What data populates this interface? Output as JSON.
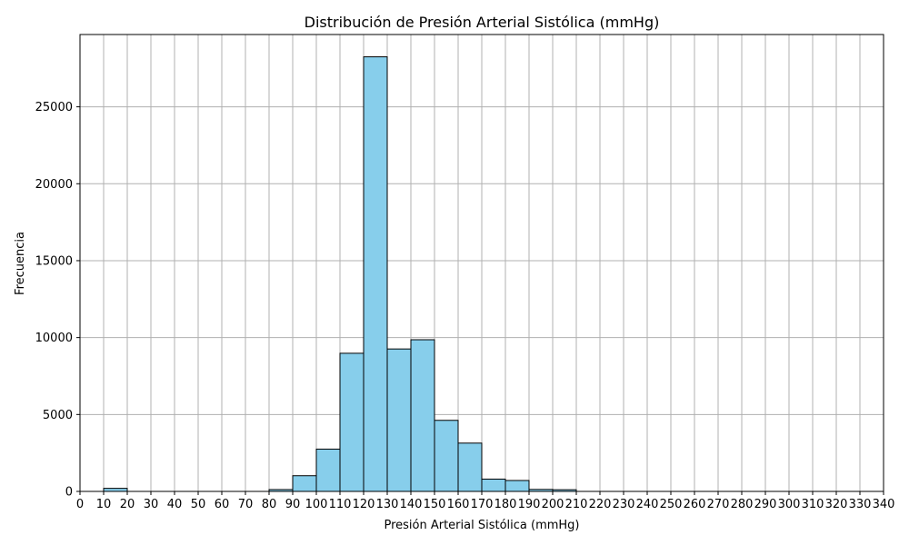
{
  "chart_data": {
    "type": "bar",
    "title": "Distribución de Presión Arterial Sistólica (mmHg)",
    "xlabel": "Presión Arterial Sistólica (mmHg)",
    "ylabel": "Frecuencia",
    "xlim": [
      0,
      340
    ],
    "ylim": [
      0,
      29700
    ],
    "xticks": [
      "0",
      "10",
      "20",
      "30",
      "40",
      "50",
      "60",
      "70",
      "80",
      "90",
      "100",
      "110",
      "120",
      "130",
      "140",
      "150",
      "160",
      "170",
      "180",
      "190",
      "200",
      "210",
      "220",
      "230",
      "240",
      "250",
      "260",
      "270",
      "280",
      "290",
      "300",
      "310",
      "320",
      "330",
      "340"
    ],
    "xtick_values": [
      0,
      10,
      20,
      30,
      40,
      50,
      60,
      70,
      80,
      90,
      100,
      110,
      120,
      130,
      140,
      150,
      160,
      170,
      180,
      190,
      200,
      210,
      220,
      230,
      240,
      250,
      260,
      270,
      280,
      290,
      300,
      310,
      320,
      330,
      340
    ],
    "yticks": [
      0,
      5000,
      10000,
      15000,
      20000,
      25000
    ],
    "grid": true,
    "bars": [
      {
        "x0": 10,
        "x1": 20,
        "value": 200
      },
      {
        "x0": 80,
        "x1": 90,
        "value": 120
      },
      {
        "x0": 90,
        "x1": 100,
        "value": 1020
      },
      {
        "x0": 100,
        "x1": 110,
        "value": 2750
      },
      {
        "x0": 110,
        "x1": 120,
        "value": 8980
      },
      {
        "x0": 120,
        "x1": 130,
        "value": 28250
      },
      {
        "x0": 130,
        "x1": 140,
        "value": 9260
      },
      {
        "x0": 140,
        "x1": 150,
        "value": 9860
      },
      {
        "x0": 150,
        "x1": 160,
        "value": 4620
      },
      {
        "x0": 160,
        "x1": 170,
        "value": 3140
      },
      {
        "x0": 170,
        "x1": 180,
        "value": 800
      },
      {
        "x0": 180,
        "x1": 190,
        "value": 710
      },
      {
        "x0": 190,
        "x1": 200,
        "value": 130
      },
      {
        "x0": 200,
        "x1": 210,
        "value": 110
      }
    ],
    "colors": {
      "bar_fill": "#87ceeb",
      "bar_edge": "#000000",
      "grid": "#b0b0b0",
      "axis": "#000000"
    }
  }
}
